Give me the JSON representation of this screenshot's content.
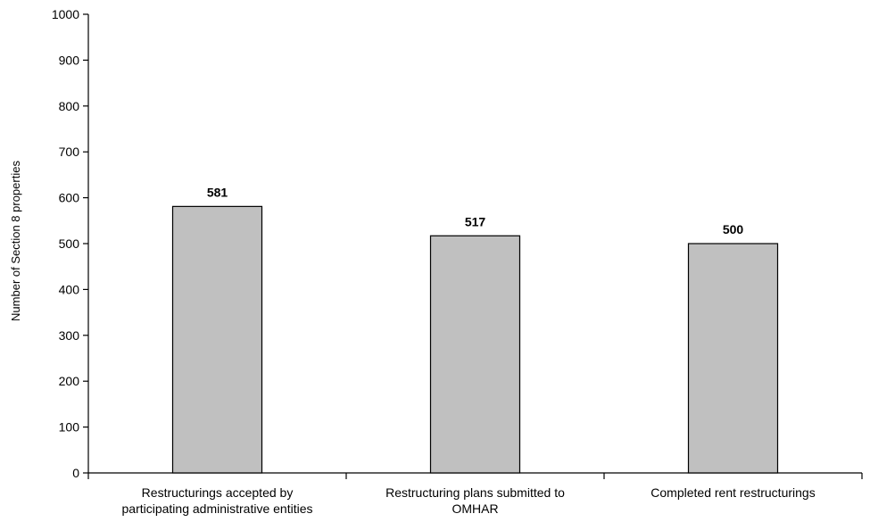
{
  "chart_data": {
    "type": "bar",
    "title": "",
    "xlabel": "",
    "ylabel": "Number of Section 8 properties",
    "ylim": [
      0,
      1000
    ],
    "yticks": [
      0,
      100,
      200,
      300,
      400,
      500,
      600,
      700,
      800,
      900,
      1000
    ],
    "grid": false,
    "legend": "none",
    "categories": [
      [
        "Restructurings accepted by",
        "participating administrative entities"
      ],
      [
        "Restructuring plans submitted to",
        "OMHAR"
      ],
      [
        "Completed rent restructurings"
      ]
    ],
    "values": [
      581,
      517,
      500
    ],
    "data_labels": [
      "581",
      "517",
      "500"
    ],
    "colors": {
      "bar_fill": "#c0c0c0",
      "bar_stroke": "#000000",
      "axis": "#000000"
    }
  }
}
